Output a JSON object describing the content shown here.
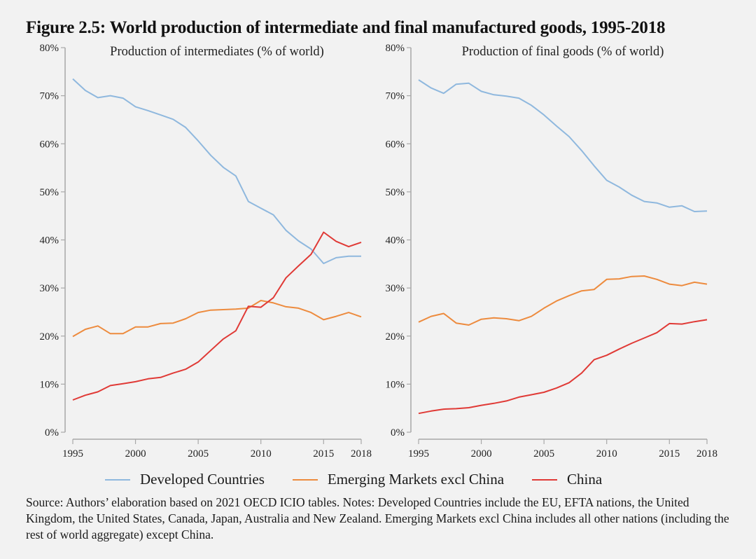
{
  "figure": {
    "title": "Figure 2.5: World production of intermediate and final manufactured goods, 1995-2018"
  },
  "legend": [
    {
      "label": "Developed Countries",
      "color": "#8fb8de"
    },
    {
      "label": "Emerging Markets excl China",
      "color": "#ed8b3e"
    },
    {
      "label": "China",
      "color": "#e03a36"
    }
  ],
  "note": "Source: Authors’ elaboration based on 2021 OECD ICIO tables. Notes: Developed Countries include the EU, EFTA nations, the United Kingdom, the United States, Canada, Japan, Australia and New Zealand. Emerging Markets excl China includes all other nations (including the rest of world aggregate) except China.",
  "chart_data": [
    {
      "type": "line",
      "title": "Production of intermediates (% of world)",
      "xlabel": "",
      "ylabel": "",
      "ylim": [
        0,
        80
      ],
      "yticks": [
        0,
        10,
        20,
        30,
        40,
        50,
        60,
        70,
        80
      ],
      "ytick_labels": [
        "0%",
        "10%",
        "20%",
        "30%",
        "40%",
        "50%",
        "60%",
        "70%",
        "80%"
      ],
      "xlim": [
        1995,
        2018
      ],
      "xticks": [
        1995,
        2000,
        2005,
        2010,
        2015,
        2018
      ],
      "xtick_labels": [
        "1995",
        "2000",
        "2005",
        "2010",
        "2015",
        "2018"
      ],
      "grid": false,
      "legend_position": "bottom",
      "x": [
        1995,
        1996,
        1997,
        1998,
        1999,
        2000,
        2001,
        2002,
        2003,
        2004,
        2005,
        2006,
        2007,
        2008,
        2009,
        2010,
        2011,
        2012,
        2013,
        2014,
        2015,
        2016,
        2017,
        2018
      ],
      "series": [
        {
          "name": "Developed Countries",
          "color": "#8fb8de",
          "values": [
            73.5,
            71.1,
            69.6,
            70.0,
            69.5,
            67.7,
            66.9,
            66.0,
            65.1,
            63.4,
            60.6,
            57.6,
            55.1,
            53.3,
            48.0,
            46.6,
            45.2,
            42.0,
            39.8,
            38.1,
            35.1,
            36.3,
            36.6,
            36.6
          ]
        },
        {
          "name": "Emerging Markets excl China",
          "color": "#ed8b3e",
          "values": [
            19.9,
            21.4,
            22.1,
            20.5,
            20.5,
            21.9,
            21.9,
            22.6,
            22.7,
            23.6,
            24.9,
            25.4,
            25.5,
            25.6,
            25.8,
            27.4,
            26.9,
            26.1,
            25.8,
            24.9,
            23.4,
            24.1,
            24.9,
            24.0
          ]
        },
        {
          "name": "China",
          "color": "#e03a36",
          "values": [
            6.7,
            7.7,
            8.4,
            9.7,
            10.1,
            10.5,
            11.1,
            11.4,
            12.3,
            13.1,
            14.6,
            17.0,
            19.4,
            21.1,
            26.2,
            26.0,
            28.0,
            32.1,
            34.6,
            37.0,
            41.6,
            39.7,
            38.6,
            39.5
          ]
        }
      ]
    },
    {
      "type": "line",
      "title": "Production of final goods (% of world)",
      "xlabel": "",
      "ylabel": "",
      "ylim": [
        0,
        80
      ],
      "yticks": [
        0,
        10,
        20,
        30,
        40,
        50,
        60,
        70,
        80
      ],
      "ytick_labels": [
        "0%",
        "10%",
        "20%",
        "30%",
        "40%",
        "50%",
        "60%",
        "70%",
        "80%"
      ],
      "xlim": [
        1995,
        2018
      ],
      "xticks": [
        1995,
        2000,
        2005,
        2010,
        2015,
        2018
      ],
      "xtick_labels": [
        "1995",
        "2000",
        "2005",
        "2010",
        "2015",
        "2018"
      ],
      "grid": false,
      "legend_position": "bottom",
      "x": [
        1995,
        1996,
        1997,
        1998,
        1999,
        2000,
        2001,
        2002,
        2003,
        2004,
        2005,
        2006,
        2007,
        2008,
        2009,
        2010,
        2011,
        2012,
        2013,
        2014,
        2015,
        2016,
        2017,
        2018
      ],
      "series": [
        {
          "name": "Developed Countries",
          "color": "#8fb8de",
          "values": [
            73.3,
            71.6,
            70.5,
            72.4,
            72.6,
            70.9,
            70.2,
            69.9,
            69.5,
            68.0,
            66.0,
            63.7,
            61.5,
            58.6,
            55.4,
            52.4,
            51.0,
            49.3,
            48.0,
            47.7,
            46.8,
            47.1,
            45.9,
            46.0
          ]
        },
        {
          "name": "Emerging Markets excl China",
          "color": "#ed8b3e",
          "values": [
            22.9,
            24.1,
            24.7,
            22.7,
            22.3,
            23.5,
            23.8,
            23.6,
            23.2,
            24.1,
            25.8,
            27.3,
            28.4,
            29.4,
            29.7,
            31.8,
            31.9,
            32.4,
            32.5,
            31.8,
            30.8,
            30.5,
            31.2,
            30.8
          ]
        },
        {
          "name": "China",
          "color": "#e03a36",
          "values": [
            3.9,
            4.4,
            4.8,
            4.9,
            5.1,
            5.6,
            6.0,
            6.5,
            7.3,
            7.8,
            8.3,
            9.2,
            10.3,
            12.3,
            15.1,
            16.0,
            17.3,
            18.5,
            19.6,
            20.7,
            22.6,
            22.5,
            23.0,
            23.4
          ]
        }
      ]
    }
  ]
}
